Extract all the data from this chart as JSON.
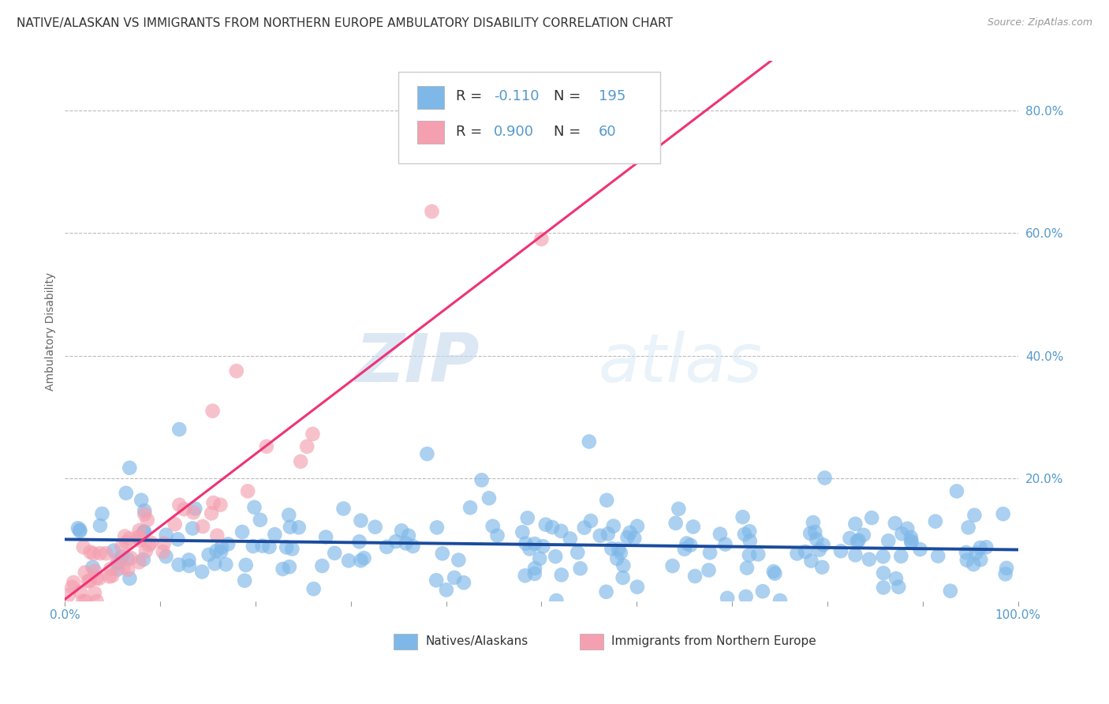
{
  "title": "NATIVE/ALASKAN VS IMMIGRANTS FROM NORTHERN EUROPE AMBULATORY DISABILITY CORRELATION CHART",
  "source": "Source: ZipAtlas.com",
  "xlabel": "",
  "ylabel": "Ambulatory Disability",
  "xlim": [
    0.0,
    1.0
  ],
  "ylim": [
    0.0,
    0.88
  ],
  "xticks": [
    0.0,
    0.1,
    0.2,
    0.3,
    0.4,
    0.5,
    0.6,
    0.7,
    0.8,
    0.9,
    1.0
  ],
  "xtick_labels": [
    "0.0%",
    "",
    "",
    "",
    "",
    "",
    "",
    "",
    "",
    "",
    "100.0%"
  ],
  "ytick_labels_right": [
    "20.0%",
    "40.0%",
    "60.0%",
    "80.0%"
  ],
  "ytick_values_right": [
    0.2,
    0.4,
    0.6,
    0.8
  ],
  "blue_R": -0.11,
  "blue_N": 195,
  "pink_R": 0.9,
  "pink_N": 60,
  "blue_color": "#7EB8E8",
  "pink_color": "#F4A0B0",
  "blue_line_color": "#1A4B9C",
  "pink_line_color": "#EE3377",
  "watermark_zip": "ZIP",
  "watermark_atlas": "atlas",
  "legend_label_blue": "Natives/Alaskans",
  "legend_label_pink": "Immigrants from Northern Europe",
  "background_color": "#FFFFFF",
  "grid_color": "#BBBBBB",
  "title_color": "#333333",
  "axis_color": "#5599CC"
}
